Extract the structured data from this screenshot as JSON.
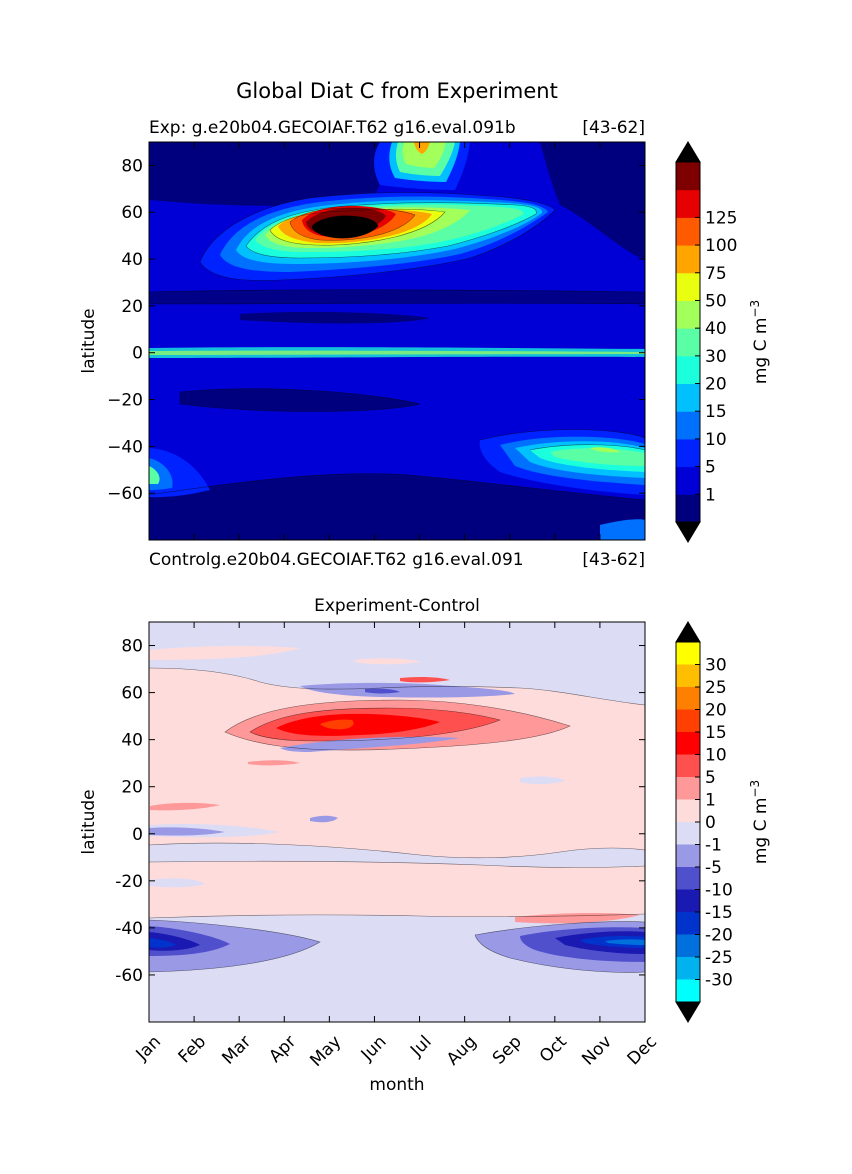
{
  "figure": {
    "title": "Global Diat C from Experiment"
  },
  "chart_data": [
    {
      "type": "heatmap",
      "subtitle_left": "Exp:    g.e20b04.GECOIAF.T62 g16.eval.091b",
      "subtitle_right": "[43-62]",
      "ylabel": "latitude",
      "xlabel": "",
      "ylim": [
        -80,
        90
      ],
      "yticks": [
        "80",
        "60",
        "40",
        "20",
        "0",
        "−20",
        "−40",
        "−60"
      ],
      "ytick_values": [
        80,
        60,
        40,
        20,
        0,
        -20,
        -40,
        -60
      ],
      "xlim": [
        0,
        11
      ],
      "colorbar": {
        "label": "mg C m",
        "label_sup": "−3",
        "levels": [
          "1",
          "5",
          "10",
          "15",
          "20",
          "30",
          "40",
          "50",
          "75",
          "100",
          "125"
        ],
        "colors": [
          "#00007f",
          "#0000d6",
          "#0022ff",
          "#0070ff",
          "#00c0ff",
          "#1bffdc",
          "#5affa5",
          "#a3ff5a",
          "#e8ff0f",
          "#ffa500",
          "#ff5a00",
          "#e60000",
          "#7f0000"
        ],
        "extend_color": "#000000"
      },
      "background_color": "#0000d6"
    },
    {
      "type": "heatmap",
      "subtitle_left": "Controlg.e20b04.GECOIAF.T62 g16.eval.091",
      "subtitle_right": "[43-62]",
      "title": "Experiment-Control",
      "ylabel": "latitude",
      "xlabel": "month",
      "ylim": [
        -80,
        90
      ],
      "yticks": [
        "80",
        "60",
        "40",
        "20",
        "0",
        "-20",
        "-40",
        "-60"
      ],
      "ytick_values": [
        80,
        60,
        40,
        20,
        0,
        -20,
        -40,
        -60
      ],
      "categories": [
        "Jan",
        "Feb",
        "Mar",
        "Apr",
        "May",
        "Jun",
        "Jul",
        "Aug",
        "Sep",
        "Oct",
        "Nov",
        "Dec"
      ],
      "xlim": [
        0,
        11
      ],
      "colorbar": {
        "label": "mg C m",
        "label_sup": "−3",
        "levels": [
          "30",
          "25",
          "20",
          "15",
          "10",
          "5",
          "1",
          "0",
          "-1",
          "-5",
          "-10",
          "-15",
          "-20",
          "-25",
          "-30"
        ],
        "colors": [
          "#ffff00",
          "#ffbf00",
          "#ff8000",
          "#ff4000",
          "#ff0000",
          "#ff5050",
          "#ff9999",
          "#ffdcdc",
          "#dcdcf5",
          "#9999e6",
          "#5050cc",
          "#1a1ab3",
          "#0033cc",
          "#0070dd",
          "#00b2ee",
          "#00ffff"
        ],
        "extend_color": "#000000"
      },
      "background_color": "#ffdcdc"
    }
  ]
}
